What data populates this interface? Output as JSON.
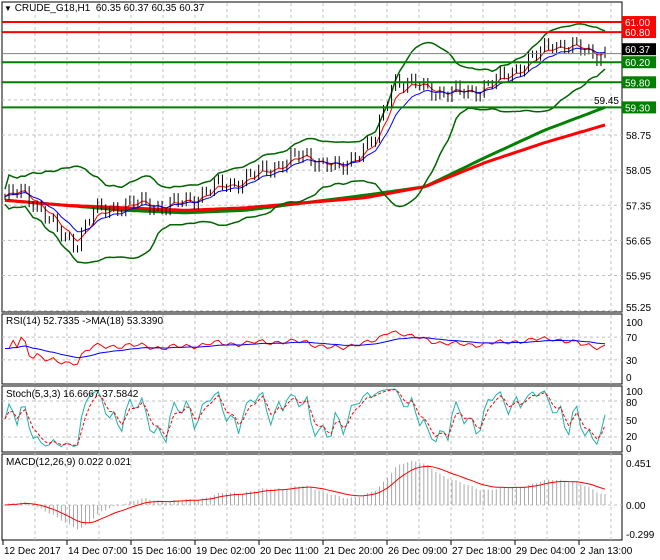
{
  "header": {
    "symbol_label": "CRUDE_G18,H1",
    "ohlc": "60.35 60.37 60.35 60.37",
    "menu_icon": "triangle-down-icon"
  },
  "price_axis": {
    "ticks": [
      "59.45",
      "58.75",
      "58.05",
      "57.35",
      "56.65",
      "55.95",
      "55.25"
    ],
    "current_price": "60.37",
    "levels": [
      {
        "value": "61.00",
        "color": "#ff0000"
      },
      {
        "value": "60.80",
        "color": "#ff0000"
      },
      {
        "value": "60.20",
        "color": "#008000"
      },
      {
        "value": "59.80",
        "color": "#008000"
      },
      {
        "value": "59.30",
        "color": "#008000"
      }
    ]
  },
  "time_axis": [
    "12 Dec 2017",
    "14 Dec 07:00",
    "15 Dec 16:00",
    "19 Dec 02:00",
    "20 Dec 11:00",
    "21 Dec 20:00",
    "26 Dec 09:00",
    "27 Dec 18:00",
    "29 Dec 04:00",
    "2 Jan 13:00"
  ],
  "rsi": {
    "label": "RSI(14) 52.7335  ->MA(18) 53.3390",
    "ticks": [
      "100",
      "70",
      "30",
      "0"
    ]
  },
  "stoch": {
    "label": "Stoch(5,3,3) 16.6667 37.5842",
    "ticks": [
      "100",
      "80",
      "50",
      "20",
      "0"
    ]
  },
  "macd": {
    "label": "MACD(12,26,9) 0.022 0.021",
    "ticks": [
      "0.451",
      "0.00",
      "-0.299"
    ]
  },
  "chart_data": {
    "type": "line",
    "title": "CRUDE_G18,H1",
    "ylim": [
      55.25,
      61.2
    ],
    "price_path": [
      57.52,
      57.62,
      57.3,
      56.8,
      56.59,
      57.21,
      57.31,
      57.35,
      57.41,
      57.3,
      57.41,
      57.55,
      57.72,
      57.8,
      57.93,
      58.1,
      58.24,
      58.34,
      58.2,
      58.03,
      58.44,
      58.65,
      59.88,
      59.75,
      59.68,
      59.57,
      59.6,
      59.68,
      59.85,
      60.09,
      60.29,
      60.6,
      60.5,
      60.4,
      60.37
    ],
    "ma_green": [
      57.45,
      57.35,
      57.25,
      57.2,
      57.25,
      57.4,
      57.55,
      57.72,
      58.3,
      58.85,
      59.3
    ],
    "ma_red": [
      57.45,
      57.35,
      57.3,
      57.25,
      57.3,
      57.4,
      57.5,
      57.72,
      58.2,
      58.6,
      58.95
    ],
    "colors": {
      "price": "#000000",
      "bollinger": "#006400",
      "ma_fast": "#ff0000",
      "ma_slow": "#0000ff",
      "stoch_main": "#20b2aa",
      "macd_hist": "#a9a9a9"
    }
  }
}
